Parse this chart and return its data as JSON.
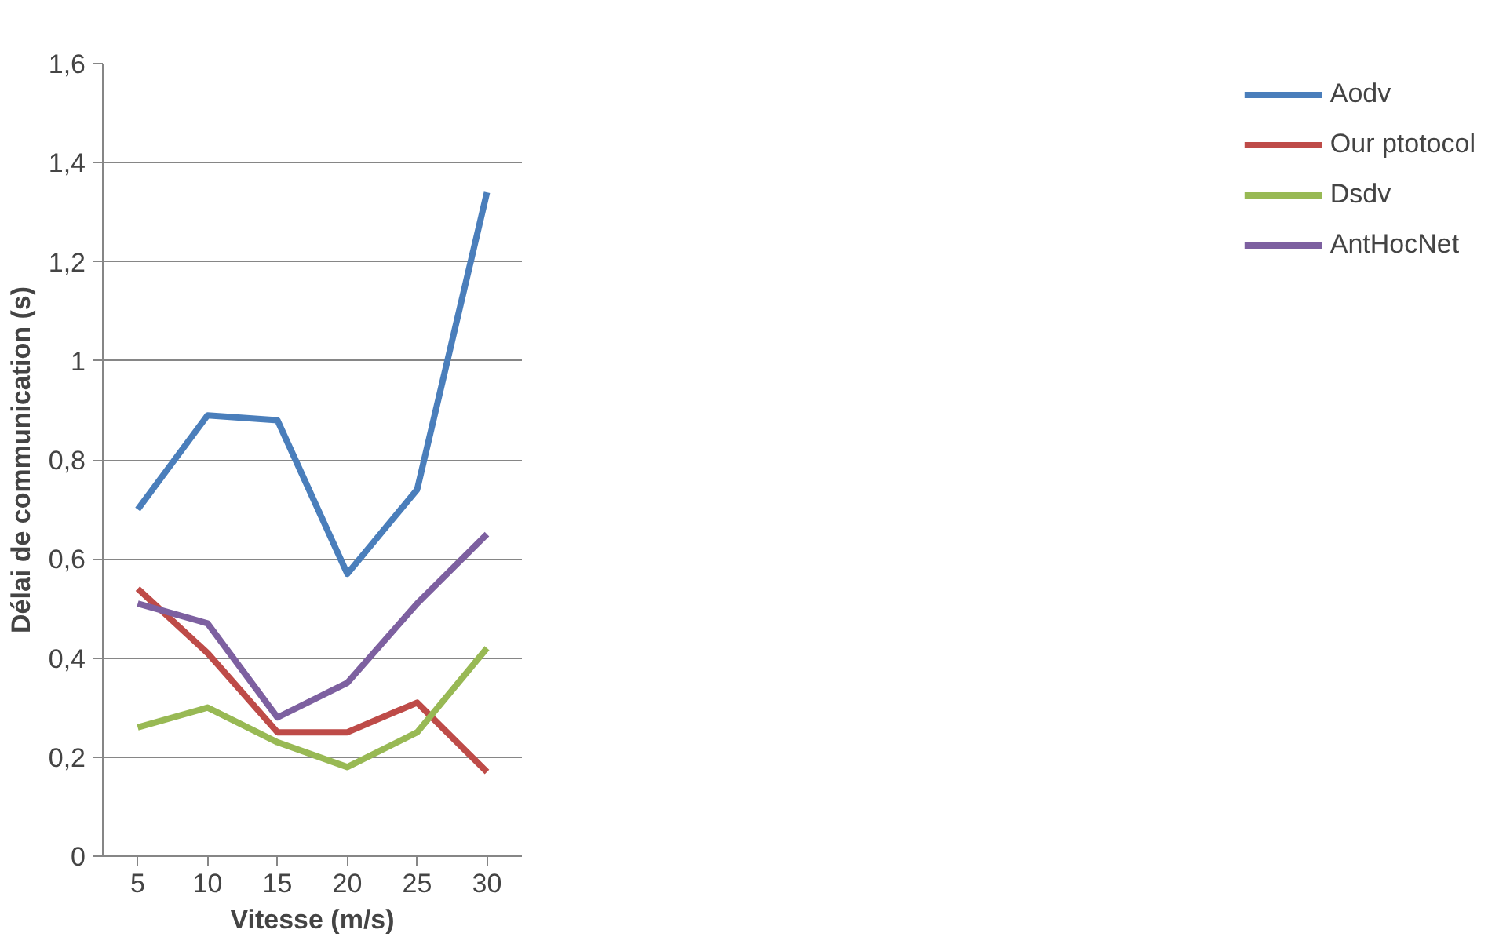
{
  "chart_data": {
    "type": "line",
    "xlabel": "Vitesse (m/s)",
    "ylabel": "Délai de communication (s)",
    "categories": [
      "5",
      "10",
      "15",
      "20",
      "25",
      "30"
    ],
    "series": [
      {
        "name": "Aodv",
        "color": "#4a7ebb",
        "values": [
          0.7,
          0.89,
          0.88,
          0.57,
          0.74,
          1.34
        ]
      },
      {
        "name": "Our ptotocol",
        "color": "#be4b48",
        "values": [
          0.54,
          0.41,
          0.25,
          0.25,
          0.31,
          0.17
        ]
      },
      {
        "name": "Dsdv",
        "color": "#98b954",
        "values": [
          0.26,
          0.3,
          0.23,
          0.18,
          0.25,
          0.42
        ]
      },
      {
        "name": "AntHocNet",
        "color": "#7d60a0",
        "values": [
          0.51,
          0.47,
          0.28,
          0.35,
          0.51,
          0.65
        ]
      }
    ],
    "ylim": [
      0,
      1.6
    ],
    "yticks": [
      0,
      {
        "value": 0.2,
        "label": "0,2"
      },
      {
        "value": 0.4,
        "label": "0,4"
      },
      {
        "value": 0.6,
        "label": "0,6"
      },
      {
        "value": 0.8,
        "label": "0,8"
      },
      1,
      {
        "value": 1.2,
        "label": "1,2"
      },
      {
        "value": 1.4,
        "label": "1,4"
      },
      {
        "value": 1.6,
        "label": "1,6"
      }
    ],
    "grid": "y",
    "legend": "right",
    "marker": "none",
    "line_style": "solid"
  }
}
